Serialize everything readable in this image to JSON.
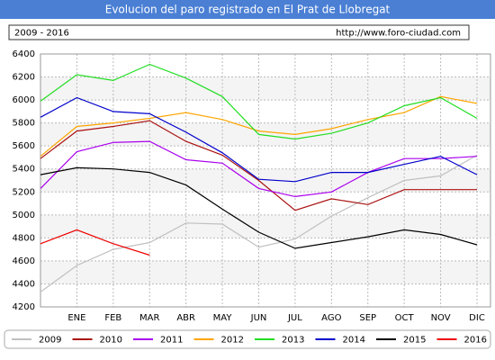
{
  "chart_data": {
    "type": "line",
    "title": "Evolucion del paro registrado en El Prat de Llobregat",
    "range_label": "2009 - 2016",
    "source": "http://www.foro-ciudad.com",
    "categories": [
      null,
      "ENE",
      "FEB",
      "MAR",
      "ABR",
      "MAY",
      "JUN",
      "JUL",
      "AGO",
      "SEP",
      "OCT",
      "NOV",
      "DIC"
    ],
    "ylim": [
      4200,
      6400
    ],
    "yticks": [
      4200,
      4400,
      4600,
      4800,
      5000,
      5200,
      5400,
      5600,
      5800,
      6000,
      6200,
      6400
    ],
    "grid": true,
    "legend": "bottom",
    "series": [
      {
        "name": "2009",
        "color": "#c0c0c0",
        "values": [
          4330,
          4560,
          4700,
          4760,
          4930,
          4920,
          4720,
          4790,
          4990,
          5150,
          5300,
          5340,
          5520
        ]
      },
      {
        "name": "2010",
        "color": "#aa1111",
        "values": [
          5490,
          5730,
          5770,
          5820,
          5640,
          5520,
          5300,
          5040,
          5140,
          5090,
          5220,
          5220,
          5220
        ]
      },
      {
        "name": "2011",
        "color": "#aa00ee",
        "values": [
          5230,
          5550,
          5630,
          5640,
          5480,
          5450,
          5230,
          5160,
          5200,
          5370,
          5490,
          5490,
          5510
        ]
      },
      {
        "name": "2012",
        "color": "#ffa500",
        "values": [
          5510,
          5770,
          5800,
          5840,
          5890,
          5830,
          5730,
          5700,
          5750,
          5830,
          5890,
          6030,
          5970
        ]
      },
      {
        "name": "2013",
        "color": "#22dd22",
        "values": [
          5990,
          6220,
          6170,
          6310,
          6190,
          6030,
          5700,
          5660,
          5710,
          5800,
          5950,
          6020,
          5840
        ]
      },
      {
        "name": "2014",
        "color": "#0000cc",
        "values": [
          5850,
          6020,
          5900,
          5880,
          5720,
          5540,
          5310,
          5290,
          5370,
          5370,
          5440,
          5510,
          5350
        ]
      },
      {
        "name": "2015",
        "color": "#000000",
        "values": [
          5350,
          5410,
          5400,
          5370,
          5260,
          5050,
          4850,
          4710,
          4760,
          4810,
          4870,
          4830,
          4740
        ]
      },
      {
        "name": "2016",
        "color": "#ee0000",
        "values": [
          4750,
          4870,
          4750,
          4650,
          null,
          null,
          null,
          null,
          null,
          null,
          null,
          null,
          null
        ]
      }
    ]
  }
}
